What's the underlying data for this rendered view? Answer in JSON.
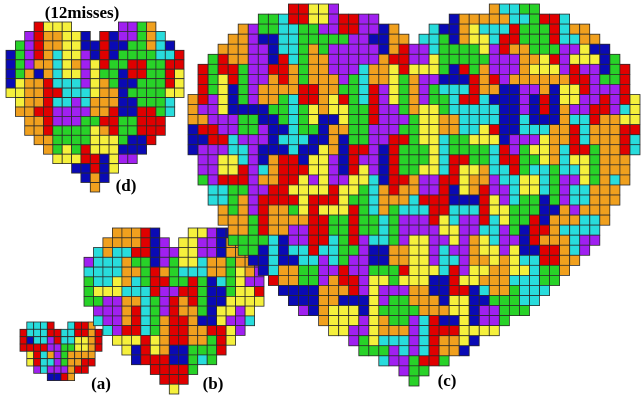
{
  "figure": {
    "note": "(12misses)",
    "panels": [
      {
        "label": "(a)"
      },
      {
        "label": "(b)"
      },
      {
        "label": "(c)"
      },
      {
        "label": "(d)"
      }
    ]
  }
}
